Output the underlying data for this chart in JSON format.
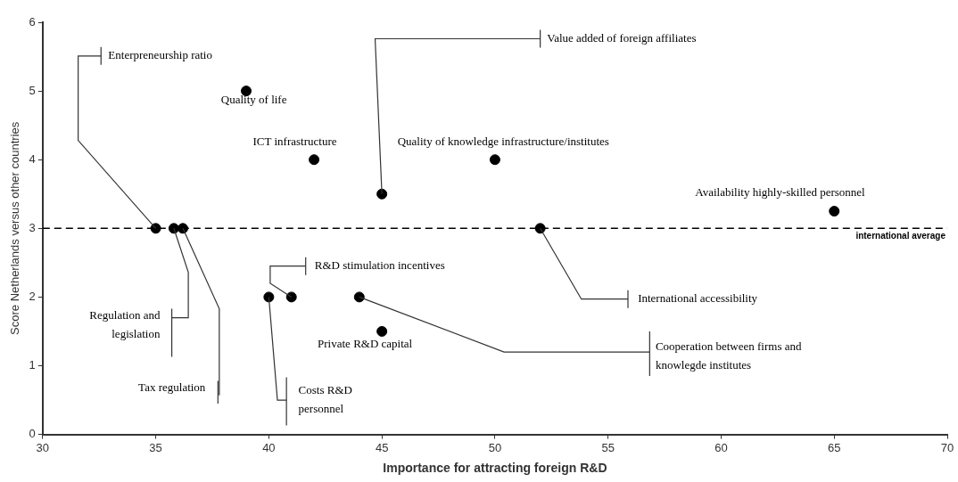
{
  "chart_data": {
    "type": "scatter",
    "xlabel": "Importance for attracting foreign R&D",
    "ylabel": "Score Netherlands versus other countries",
    "x": [
      35,
      35.8,
      36.2,
      39,
      42,
      45,
      50,
      65,
      52,
      41,
      40,
      44,
      45
    ],
    "series": [
      {
        "color": "#000000",
        "values": [
          3,
          3,
          3,
          5,
          4,
          3.5,
          4,
          3.25,
          3,
          2,
          2,
          2,
          1.5
        ]
      }
    ],
    "xlim": [
      30,
      70
    ],
    "xticks": [
      30,
      35,
      40,
      45,
      50,
      55,
      60,
      65,
      70
    ],
    "ylim": [
      0,
      6
    ],
    "yticks": [
      0,
      1,
      2,
      3,
      4,
      5,
      6
    ],
    "grid": false,
    "legend": false,
    "marker": "circle",
    "ref_lines": [
      {
        "axis": "y",
        "value": 3,
        "label": "international average",
        "color": "#000000",
        "line_style": "dashed"
      }
    ],
    "annotations": [
      {
        "text": "Enterpreneurship ratio",
        "x": 35,
        "y": 3
      },
      {
        "text": "Regulation and legislation",
        "x": 35.8,
        "y": 3
      },
      {
        "text": "Tax regulation",
        "x": 36.2,
        "y": 3
      },
      {
        "text": "Quality of life",
        "x": 39,
        "y": 5
      },
      {
        "text": "ICT infrastructure",
        "x": 42,
        "y": 4
      },
      {
        "text": "Value added of foreign affiliates",
        "x": 45,
        "y": 3.5
      },
      {
        "text": "Quality of knowledge infrastructure/institutes",
        "x": 50,
        "y": 4
      },
      {
        "text": "Availability highly-skilled personnel",
        "x": 65,
        "y": 3.25
      },
      {
        "text": "International accessibility",
        "x": 52,
        "y": 3
      },
      {
        "text": "R&D stimulation incentives",
        "x": 41,
        "y": 2
      },
      {
        "text": "Costs R&D personnel",
        "x": 40,
        "y": 2
      },
      {
        "text": "Cooperation between firms and knowlegde institutes",
        "x": 44,
        "y": 2
      },
      {
        "text": "Private R&D capital",
        "x": 45,
        "y": 1.5
      }
    ]
  }
}
